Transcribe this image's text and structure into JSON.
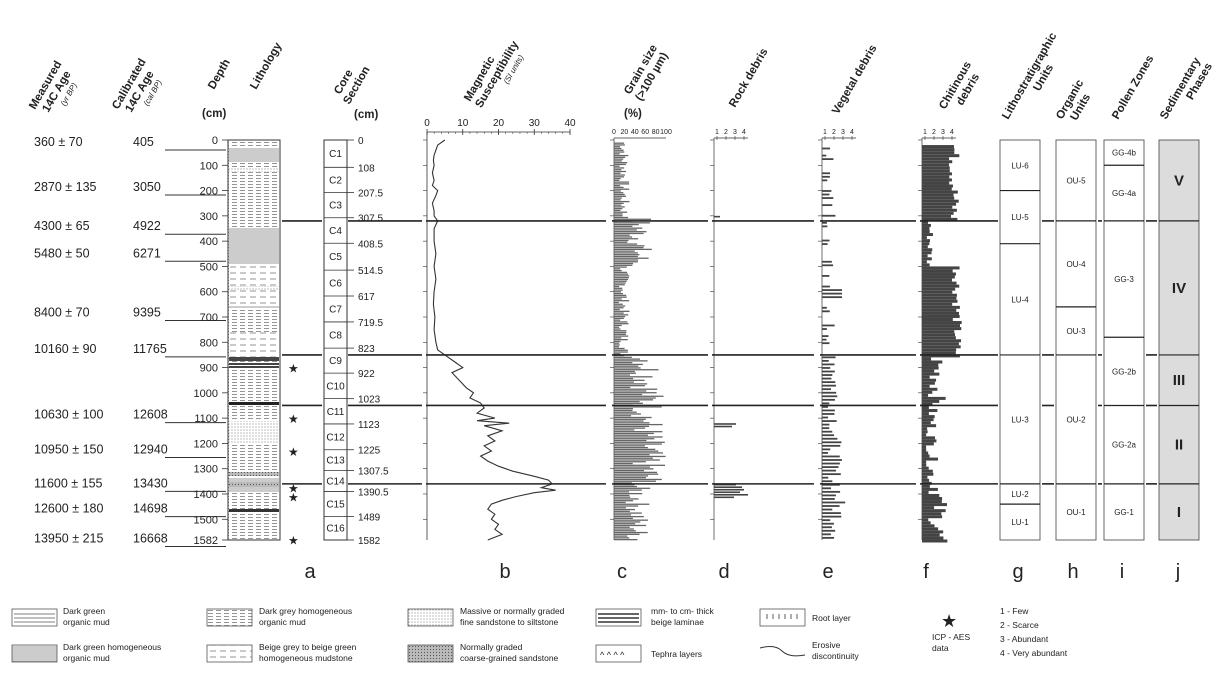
{
  "headers": {
    "measured_age": [
      "Measured",
      "14C Age",
      "(yr BP)"
    ],
    "calibrated_age": [
      "Calibrated",
      "14C Age",
      "(cal BP)"
    ],
    "depth": "Depth",
    "depth_unit": "(cm)",
    "lithology": "Lithology",
    "core_section": [
      "Core",
      "Section"
    ],
    "core_section_unit": "(cm)",
    "magnetic_susceptibility": [
      "Magnetic",
      "Susceptibility",
      "(SI units)"
    ],
    "grain_size": [
      "Grain size",
      "(>100 µm)"
    ],
    "grain_size_unit": "(%)",
    "rock_debris": "Rock debris",
    "vegetal_debris": "Vegetal debris",
    "chitinous_debris": [
      "Chitinous",
      "debris"
    ],
    "lithostratigraphic_units": [
      "Lithostratigraphic",
      "Units"
    ],
    "organic_units": [
      "Organic",
      "Units"
    ],
    "pollen_zones": "Pollen Zones",
    "sedimentary_phases": [
      "Sedimentary",
      "Phases"
    ]
  },
  "ages": [
    {
      "measured": "360 ± 70",
      "calibrated": "405",
      "depth": 12
    },
    {
      "measured": "2870 ± 135",
      "calibrated": "3050",
      "depth": 190
    },
    {
      "measured": "4300 ± 65",
      "calibrated": "4922",
      "depth": 345
    },
    {
      "measured": "5480 ± 50",
      "calibrated": "6271",
      "depth": 452
    },
    {
      "measured": "8400 ± 70",
      "calibrated": "9395",
      "depth": 686
    },
    {
      "measured": "10160 ± 90",
      "calibrated": "11765",
      "depth": 830
    },
    {
      "measured": "10630 ± 100",
      "calibrated": "12608",
      "depth": 1090
    },
    {
      "measured": "10950 ± 150",
      "calibrated": "12940",
      "depth": 1228
    },
    {
      "measured": "11600 ± 155",
      "calibrated": "13430",
      "depth": 1362
    },
    {
      "measured": "12600 ± 180",
      "calibrated": "14698",
      "depth": 1462
    },
    {
      "measured": "13950 ± 215",
      "calibrated": "16668",
      "depth": 1580
    }
  ],
  "depth_ticks": [
    "0",
    "100",
    "200",
    "300",
    "400",
    "500",
    "600",
    "700",
    "800",
    "900",
    "1000",
    "1100",
    "1200",
    "1300",
    "1400",
    "1500",
    "1582"
  ],
  "core_sections": [
    {
      "label": "C1",
      "top": 0,
      "bottom": 108
    },
    {
      "label": "C2",
      "top": 108,
      "bottom": 207.5
    },
    {
      "label": "C3",
      "top": 207.5,
      "bottom": 307.5
    },
    {
      "label": "C4",
      "top": 307.5,
      "bottom": 408.5
    },
    {
      "label": "C5",
      "top": 408.5,
      "bottom": 514.5
    },
    {
      "label": "C6",
      "top": 514.5,
      "bottom": 617
    },
    {
      "label": "C7",
      "top": 617,
      "bottom": 719.5
    },
    {
      "label": "C8",
      "top": 719.5,
      "bottom": 823
    },
    {
      "label": "C9",
      "top": 823,
      "bottom": 922
    },
    {
      "label": "C10",
      "top": 922,
      "bottom": 1023
    },
    {
      "label": "C11",
      "top": 1023,
      "bottom": 1123
    },
    {
      "label": "C12",
      "top": 1123,
      "bottom": 1225
    },
    {
      "label": "C13",
      "top": 1225,
      "bottom": 1307.5
    },
    {
      "label": "C14",
      "top": 1307.5,
      "bottom": 1390.5
    },
    {
      "label": "C15",
      "top": 1390.5,
      "bottom": 1489
    },
    {
      "label": "C16",
      "top": 1489,
      "bottom": 1582
    }
  ],
  "section_boundaries": [
    "0",
    "108",
    "207.5",
    "307.5",
    "408.5",
    "514.5",
    "617",
    "719.5",
    "823",
    "922",
    "1023",
    "1123",
    "1225",
    "1307.5",
    "1390.5",
    "1489",
    "1582"
  ],
  "ms_axis": {
    "ticks": [
      "0",
      "10",
      "20",
      "30",
      "40"
    ],
    "min": 0,
    "max": 40
  },
  "ms_profile": [
    [
      0,
      5
    ],
    [
      20,
      3
    ],
    [
      40,
      2.5
    ],
    [
      60,
      2
    ],
    [
      80,
      1.8
    ],
    [
      100,
      2
    ],
    [
      130,
      1.5
    ],
    [
      160,
      2
    ],
    [
      180,
      1.5
    ],
    [
      200,
      3
    ],
    [
      220,
      2.5
    ],
    [
      250,
      1.5
    ],
    [
      280,
      2
    ],
    [
      300,
      2
    ],
    [
      320,
      3
    ],
    [
      350,
      2
    ],
    [
      400,
      2
    ],
    [
      450,
      2.5
    ],
    [
      500,
      2
    ],
    [
      550,
      2.5
    ],
    [
      600,
      2
    ],
    [
      650,
      1.8
    ],
    [
      700,
      2.2
    ],
    [
      750,
      2
    ],
    [
      800,
      2.5
    ],
    [
      830,
      3
    ],
    [
      850,
      5
    ],
    [
      880,
      8
    ],
    [
      900,
      10
    ],
    [
      920,
      7
    ],
    [
      950,
      9
    ],
    [
      980,
      11
    ],
    [
      1000,
      13
    ],
    [
      1020,
      12
    ],
    [
      1040,
      15
    ],
    [
      1060,
      16
    ],
    [
      1080,
      14
    ],
    [
      1100,
      19
    ],
    [
      1110,
      14
    ],
    [
      1120,
      23
    ],
    [
      1130,
      16
    ],
    [
      1150,
      21
    ],
    [
      1170,
      17
    ],
    [
      1190,
      19
    ],
    [
      1210,
      16
    ],
    [
      1230,
      18
    ],
    [
      1250,
      15
    ],
    [
      1270,
      17
    ],
    [
      1290,
      20
    ],
    [
      1310,
      24
    ],
    [
      1330,
      30
    ],
    [
      1345,
      34
    ],
    [
      1360,
      35
    ],
    [
      1375,
      32
    ],
    [
      1385,
      36
    ],
    [
      1395,
      30
    ],
    [
      1410,
      25
    ],
    [
      1425,
      21
    ],
    [
      1440,
      18
    ],
    [
      1460,
      17
    ],
    [
      1480,
      19
    ],
    [
      1500,
      18
    ],
    [
      1520,
      20
    ],
    [
      1540,
      19
    ],
    [
      1560,
      21
    ],
    [
      1582,
      17
    ]
  ],
  "grain_axis": {
    "ticks": [
      "0",
      "20",
      "40",
      "60",
      "80",
      "100"
    ]
  },
  "rock_axis": {
    "ticks": [
      "1",
      "2",
      "3",
      "4"
    ]
  },
  "vegetal_axis": {
    "ticks": [
      "1",
      "2",
      "3",
      "4"
    ]
  },
  "chitin_axis": {
    "ticks": [
      "1",
      "2",
      "3",
      "4"
    ]
  },
  "litho_units": [
    {
      "label": "LU-6",
      "top": 0,
      "bottom": 200
    },
    {
      "label": "LU-5",
      "top": 200,
      "bottom": 410
    },
    {
      "label": "LU-4",
      "top": 410,
      "bottom": 850
    },
    {
      "label": "LU-3",
      "top": 850,
      "bottom": 1360
    },
    {
      "label": "LU-2",
      "top": 1360,
      "bottom": 1440
    },
    {
      "label": "LU-1",
      "top": 1440,
      "bottom": 1582
    }
  ],
  "organic_units": [
    {
      "label": "OU-5",
      "top": 0,
      "bottom": 320
    },
    {
      "label": "OU-4",
      "top": 320,
      "bottom": 660
    },
    {
      "label": "OU-3",
      "top": 660,
      "bottom": 850
    },
    {
      "label": "OU-2",
      "top": 850,
      "bottom": 1360
    },
    {
      "label": "OU-1",
      "top": 1360,
      "bottom": 1582
    }
  ],
  "pollen_zones": [
    {
      "label": "GG-4b",
      "top": 0,
      "bottom": 100
    },
    {
      "label": "GG-4a",
      "top": 100,
      "bottom": 320
    },
    {
      "label": "GG-3",
      "top": 320,
      "bottom": 780
    },
    {
      "label": "GG-2b",
      "top": 780,
      "bottom": 1050
    },
    {
      "label": "GG-2a",
      "top": 1050,
      "bottom": 1360
    },
    {
      "label": "GG-1",
      "top": 1360,
      "bottom": 1582
    }
  ],
  "phases": [
    {
      "label": "V",
      "top": 0,
      "bottom": 320
    },
    {
      "label": "IV",
      "top": 320,
      "bottom": 850
    },
    {
      "label": "III",
      "top": 850,
      "bottom": 1050
    },
    {
      "label": "II",
      "top": 1050,
      "bottom": 1360
    },
    {
      "label": "I",
      "top": 1360,
      "bottom": 1582
    }
  ],
  "discontinuities": [
    320,
    850,
    1050,
    1360
  ],
  "icp_stars": [
    900,
    1100,
    1230,
    1375,
    1410,
    1580
  ],
  "panel_letters": [
    "a",
    "b",
    "c",
    "d",
    "e",
    "f",
    "g",
    "h",
    "i",
    "j"
  ],
  "legend": {
    "dark_green_mud": "Dark green\norganic mud",
    "dark_green_homog": "Dark green homogeneous\norganic mud",
    "dark_grey_homog": "Dark grey homogeneous\norganic mud",
    "beige_grey_mudstone": "Beige grey to beige green\nhomogeneous mudstone",
    "massive_sandstone": "Massive or normally graded\nfine sandstone to siltstone",
    "coarse_sandstone": "Normally graded\ncoarse-grained sandstone",
    "laminae": "mm- to cm- thick\nbeige laminae",
    "tephra": "Tephra layers",
    "root_layer": "Root layer",
    "erosive": "Erosive\ndiscontinuity",
    "icp": "ICP - AES\ndata",
    "scale": [
      "1 - Few",
      "2 - Scarce",
      "3 - Abundant",
      "4 - Very abundant"
    ]
  }
}
